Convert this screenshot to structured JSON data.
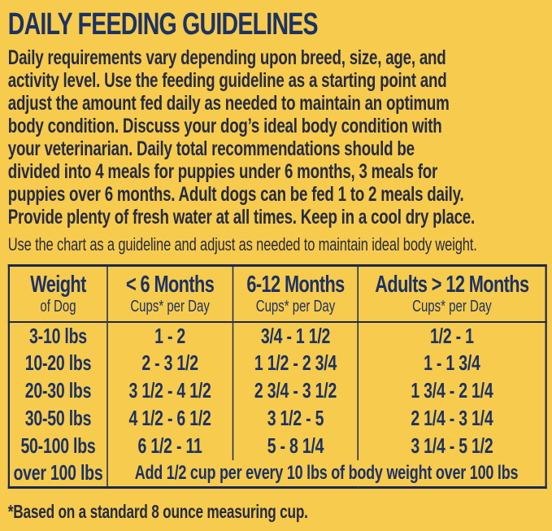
{
  "colors": {
    "background_yellow": "#F7CB4E",
    "table_navy": "#1C3263",
    "body_ink": "#262B42",
    "border_navy": "#1B2952"
  },
  "title": "DAILY FEEDING GUIDELINES",
  "intro": {
    "lines": [
      "Daily requirements vary depending upon breed, size, age, and",
      "activity level. Use the feeding guideline as a starting point and",
      "adjust the amount fed daily as needed to maintain an optimum",
      "body condition. Discuss your dog’s ideal body condition with",
      "your veterinarian. Daily total recommendations should be",
      "divided into 4 meals for puppies under 6 months, 3 meals for",
      "puppies over 6 months. Adult dogs can be fed 1 to 2 meals daily.",
      "Provide plenty of fresh water at all times. Keep in a cool dry place."
    ]
  },
  "chart_note": "Use the chart as a guideline and adjust as needed to maintain ideal body weight.",
  "table": {
    "headers": [
      {
        "title": "Weight",
        "subtitle": "of Dog"
      },
      {
        "title": "< 6 Months",
        "subtitle": "Cups* per Day"
      },
      {
        "title": "6-12 Months",
        "subtitle": "Cups* per Day"
      },
      {
        "title": "Adults > 12 Months",
        "subtitle": "Cups* per Day"
      }
    ],
    "rows": [
      {
        "weight": "3-10 lbs",
        "under6": "1 - 2",
        "m6to12": "3/4 - 1 1/2",
        "adults": "1/2 - 1"
      },
      {
        "weight": "10-20 lbs",
        "under6": "2 - 3 1/2",
        "m6to12": "1 1/2 - 2 3/4",
        "adults": "1 - 1 3/4"
      },
      {
        "weight": "20-30 lbs",
        "under6": "3 1/2 - 4 1/2",
        "m6to12": "2 3/4 - 3 1/2",
        "adults": "1 3/4 - 2 1/4"
      },
      {
        "weight": "30-50 lbs",
        "under6": "4 1/2 - 6 1/2",
        "m6to12": "3 1/2 - 5",
        "adults": "2 1/4 - 3 1/4"
      },
      {
        "weight": "50-100 lbs",
        "under6": "6 1/2 - 11",
        "m6to12": "5 - 8 1/4",
        "adults": "3 1/4 - 5 1/2"
      }
    ],
    "over100": {
      "weight": "over 100 lbs",
      "note": "Add 1/2 cup per every 10 lbs of body weight over 100 lbs"
    }
  },
  "footnote": "*Based on a standard 8 ounce measuring cup."
}
